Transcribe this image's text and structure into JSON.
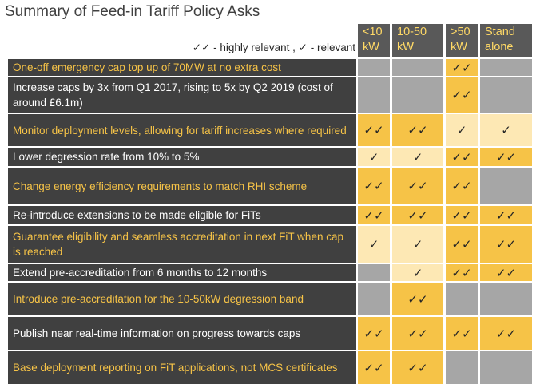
{
  "title": "Summary of Feed-in Tariff Policy Asks",
  "legend": "✓✓ - highly relevant , ✓ - relevant",
  "columns": [
    "<10 kW",
    "10-50 kW",
    ">50 kW",
    "Stand alone"
  ],
  "rows": [
    {
      "label": "One-off emergency cap top up of 70MW at no extra cost",
      "tone": "yellow",
      "cells": [
        {
          "mark": "",
          "fill": "grey"
        },
        {
          "mark": "",
          "fill": "grey"
        },
        {
          "mark": "✓✓",
          "fill": "dark"
        },
        {
          "mark": "",
          "fill": "grey"
        }
      ]
    },
    {
      "label": "Increase caps by 3x from Q1 2017, rising to 5x by Q2 2019 (cost of around £6.1m)",
      "tone": "white",
      "cells": [
        {
          "mark": "",
          "fill": "grey"
        },
        {
          "mark": "",
          "fill": "grey"
        },
        {
          "mark": "✓✓",
          "fill": "dark"
        },
        {
          "mark": "",
          "fill": "grey"
        }
      ]
    },
    {
      "label": "Monitor deployment levels, allowing for tariff increases where required",
      "tone": "yellow",
      "cells": [
        {
          "mark": "✓✓",
          "fill": "dark"
        },
        {
          "mark": "✓✓",
          "fill": "dark"
        },
        {
          "mark": "✓",
          "fill": "light"
        },
        {
          "mark": "✓",
          "fill": "light"
        }
      ]
    },
    {
      "label": "Lower degression rate from 10% to 5%",
      "tone": "white",
      "cells": [
        {
          "mark": "✓",
          "fill": "light"
        },
        {
          "mark": "✓",
          "fill": "light"
        },
        {
          "mark": "✓✓",
          "fill": "dark"
        },
        {
          "mark": "✓✓",
          "fill": "dark"
        }
      ]
    },
    {
      "label": "Change energy efficiency requirements to match RHI scheme",
      "tone": "yellow",
      "cells": [
        {
          "mark": "✓✓",
          "fill": "dark"
        },
        {
          "mark": "✓✓",
          "fill": "dark"
        },
        {
          "mark": "✓✓",
          "fill": "dark"
        },
        {
          "mark": "",
          "fill": "grey"
        }
      ]
    },
    {
      "label": "Re-introduce extensions to be made eligible for FiTs",
      "tone": "white",
      "cells": [
        {
          "mark": "✓✓",
          "fill": "dark"
        },
        {
          "mark": "✓✓",
          "fill": "dark"
        },
        {
          "mark": "✓✓",
          "fill": "dark"
        },
        {
          "mark": "✓✓",
          "fill": "dark"
        }
      ]
    },
    {
      "label": "Guarantee eligibility and seamless accreditation in next FiT when cap is reached",
      "tone": "yellow",
      "cells": [
        {
          "mark": "✓",
          "fill": "light"
        },
        {
          "mark": "✓",
          "fill": "light"
        },
        {
          "mark": "✓✓",
          "fill": "dark"
        },
        {
          "mark": "✓✓",
          "fill": "dark"
        }
      ]
    },
    {
      "label": "Extend pre-accreditation from 6 months to 12 months",
      "tone": "white",
      "cells": [
        {
          "mark": "",
          "fill": "grey"
        },
        {
          "mark": "✓",
          "fill": "light"
        },
        {
          "mark": "✓✓",
          "fill": "dark"
        },
        {
          "mark": "✓✓",
          "fill": "dark"
        }
      ]
    },
    {
      "label": "Introduce pre-accreditation for the 10-50kW degression band",
      "tone": "yellow",
      "cells": [
        {
          "mark": "",
          "fill": "grey"
        },
        {
          "mark": "✓✓",
          "fill": "dark"
        },
        {
          "mark": "",
          "fill": "grey"
        },
        {
          "mark": "",
          "fill": "grey"
        }
      ]
    },
    {
      "label": "Publish near real-time information on progress towards caps",
      "tone": "white",
      "cells": [
        {
          "mark": "✓✓",
          "fill": "dark"
        },
        {
          "mark": "✓✓",
          "fill": "dark"
        },
        {
          "mark": "✓✓",
          "fill": "dark"
        },
        {
          "mark": "✓✓",
          "fill": "dark"
        }
      ]
    },
    {
      "label": "Base deployment reporting on FiT applications, not MCS certificates",
      "tone": "yellow",
      "cells": [
        {
          "mark": "✓✓",
          "fill": "dark"
        },
        {
          "mark": "✓✓",
          "fill": "dark"
        },
        {
          "mark": "",
          "fill": "grey"
        },
        {
          "mark": "",
          "fill": "grey"
        }
      ]
    }
  ],
  "colors": {
    "yellow_text": "#f6c347",
    "white_text": "#ffffff",
    "label_bg": "#404040",
    "header_bg": "#595959"
  }
}
